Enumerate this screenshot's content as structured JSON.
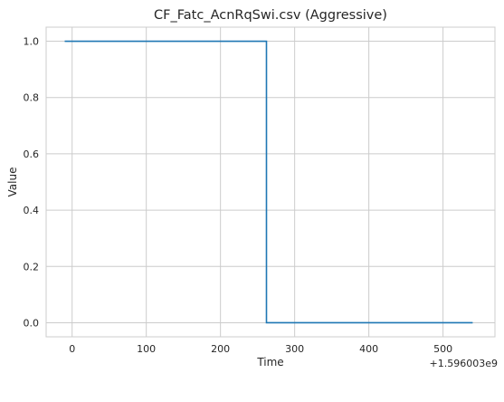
{
  "chart_data": {
    "type": "line",
    "title": "CF_Fatc_AcnRqSwi.csv (Aggressive)",
    "xlabel": "Time",
    "ylabel": "Value",
    "x_offset_label": "+1.596003e9",
    "xlim": [
      -35,
      570
    ],
    "ylim": [
      -0.05,
      1.05
    ],
    "x_ticks": [
      0,
      100,
      200,
      300,
      400,
      500
    ],
    "x_tick_labels": [
      "0",
      "100",
      "200",
      "300",
      "400",
      "500"
    ],
    "y_ticks": [
      0.0,
      0.2,
      0.4,
      0.6,
      0.8,
      1.0
    ],
    "y_tick_labels": [
      "0.0",
      "0.2",
      "0.4",
      "0.6",
      "0.8",
      "1.0"
    ],
    "grid": true,
    "series": [
      {
        "color": "#1f77b4",
        "step": true,
        "x": [
          -10,
          262,
          262,
          540
        ],
        "y": [
          1.0,
          1.0,
          0.0,
          0.0
        ]
      }
    ]
  }
}
